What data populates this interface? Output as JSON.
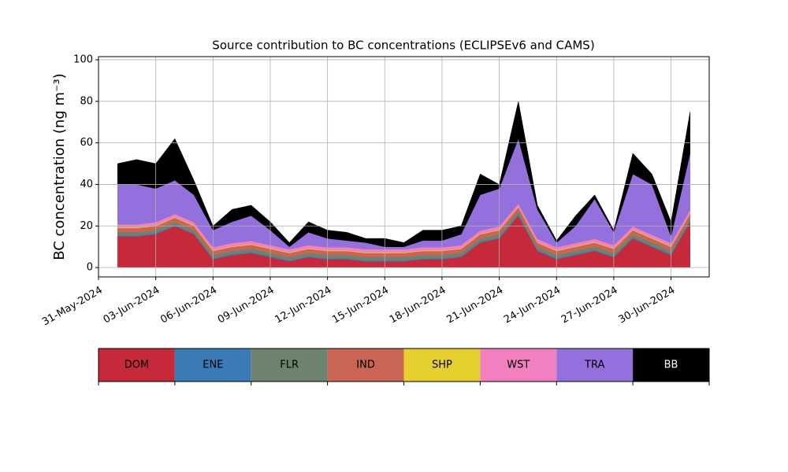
{
  "chart_data": {
    "type": "stacked_area",
    "title": "Source contribution to BC concentrations (ECLIPSEv6 and CAMS)",
    "y_label": "BC concentration (ng m⁻³)",
    "x": [
      "2024-06-01",
      "2024-06-02",
      "2024-06-03",
      "2024-06-04",
      "2024-06-05",
      "2024-06-06",
      "2024-06-07",
      "2024-06-08",
      "2024-06-09",
      "2024-06-10",
      "2024-06-11",
      "2024-06-12",
      "2024-06-13",
      "2024-06-14",
      "2024-06-15",
      "2024-06-16",
      "2024-06-17",
      "2024-06-18",
      "2024-06-19",
      "2024-06-20",
      "2024-06-21",
      "2024-06-22",
      "2024-06-23",
      "2024-06-24",
      "2024-06-25",
      "2024-06-26",
      "2024-06-27",
      "2024-06-28",
      "2024-06-29",
      "2024-06-30",
      "2024-07-01"
    ],
    "xlim": [
      "2024-05-31",
      "2024-07-02"
    ],
    "xticks": [
      {
        "value": "2024-05-31",
        "label": "31-May-2024"
      },
      {
        "value": "2024-06-03",
        "label": "03-Jun-2024"
      },
      {
        "value": "2024-06-06",
        "label": "06-Jun-2024"
      },
      {
        "value": "2024-06-09",
        "label": "09-Jun-2024"
      },
      {
        "value": "2024-06-12",
        "label": "12-Jun-2024"
      },
      {
        "value": "2024-06-15",
        "label": "15-Jun-2024"
      },
      {
        "value": "2024-06-18",
        "label": "18-Jun-2024"
      },
      {
        "value": "2024-06-21",
        "label": "21-Jun-2024"
      },
      {
        "value": "2024-06-24",
        "label": "24-Jun-2024"
      },
      {
        "value": "2024-06-27",
        "label": "27-Jun-2024"
      },
      {
        "value": "2024-06-30",
        "label": "30-Jun-2024"
      }
    ],
    "ylim": [
      -4.5,
      101.5
    ],
    "yticks": [
      0,
      20,
      40,
      60,
      80,
      100
    ],
    "grid": true,
    "series": [
      {
        "name": "DOM",
        "color": "#c62a3a",
        "values": [
          15,
          15,
          16,
          20,
          16,
          4,
          6,
          7,
          5,
          3,
          5,
          4,
          4,
          3,
          3,
          3,
          4,
          4,
          5,
          12,
          14,
          25,
          8,
          4,
          6,
          8,
          5,
          14,
          10,
          6,
          22
        ]
      },
      {
        "name": "ENE",
        "color": "#3a7ab5",
        "values": [
          0.5,
          0.5,
          0.5,
          0.5,
          0.5,
          0.5,
          0.5,
          0.5,
          0.5,
          0.5,
          0.5,
          0.5,
          0.5,
          0.5,
          0.5,
          0.5,
          0.5,
          0.5,
          0.5,
          0.5,
          0.5,
          0.5,
          0.5,
          0.5,
          0.5,
          0.5,
          0.5,
          0.5,
          0.5,
          0.5,
          0.5
        ]
      },
      {
        "name": "FLR",
        "color": "#6e8270",
        "values": [
          1.5,
          1.5,
          1.5,
          1.5,
          1.5,
          1.5,
          1.5,
          1.5,
          1.5,
          1.5,
          1.5,
          1.5,
          1.5,
          1.5,
          1.5,
          1.5,
          1.5,
          1.5,
          1.5,
          1.5,
          1.5,
          1.5,
          1.5,
          1.5,
          1.5,
          1.5,
          1.5,
          1.5,
          1.5,
          1.5,
          1.5
        ]
      },
      {
        "name": "IND",
        "color": "#c96554",
        "values": [
          2,
          2,
          2,
          2,
          2,
          2,
          2,
          2,
          2,
          2,
          2,
          2,
          2,
          2,
          2,
          2,
          2,
          2,
          2,
          2,
          2,
          2,
          2,
          2,
          2,
          2,
          2,
          2,
          2,
          2,
          2
        ]
      },
      {
        "name": "SHP",
        "color": "#e6d030",
        "values": [
          0.3,
          0.3,
          0.3,
          0.3,
          0.3,
          0.3,
          0.3,
          0.3,
          0.3,
          0.3,
          0.3,
          0.3,
          0.3,
          0.3,
          0.3,
          0.3,
          0.3,
          0.3,
          0.3,
          0.3,
          0.3,
          0.3,
          0.3,
          0.3,
          0.3,
          0.3,
          0.3,
          0.3,
          0.3,
          0.3,
          0.3
        ]
      },
      {
        "name": "WST",
        "color": "#f27fbe",
        "values": [
          1.5,
          1.5,
          1.5,
          1.5,
          1.5,
          1.5,
          1.5,
          1.5,
          1.5,
          1.5,
          1.5,
          1.5,
          1.5,
          1.5,
          1.5,
          1.5,
          1.5,
          1.5,
          1.5,
          1.5,
          1.5,
          1.5,
          1.5,
          1.5,
          1.5,
          1.5,
          1.5,
          1.5,
          1.5,
          1.5,
          1.5
        ]
      },
      {
        "name": "TRA",
        "color": "#9370db",
        "values": [
          19.2,
          19.2,
          16.2,
          16.2,
          13.2,
          8.2,
          10.2,
          12.2,
          7.2,
          1.2,
          6.2,
          4.2,
          3.2,
          3.2,
          1.2,
          1.2,
          3.2,
          3.2,
          5.2,
          17.2,
          18.2,
          31.2,
          14.2,
          2.2,
          8.2,
          19.2,
          6.2,
          25.2,
          24.2,
          3.2,
          27.2
        ]
      },
      {
        "name": "BB",
        "color": "#000000",
        "values": [
          10,
          12,
          12,
          20,
          7,
          2,
          6,
          5,
          4,
          2,
          5,
          4,
          4,
          2,
          4,
          2,
          5,
          5,
          4,
          10,
          2,
          18,
          2,
          1,
          5,
          2,
          1,
          10,
          5,
          7,
          20
        ]
      }
    ]
  }
}
